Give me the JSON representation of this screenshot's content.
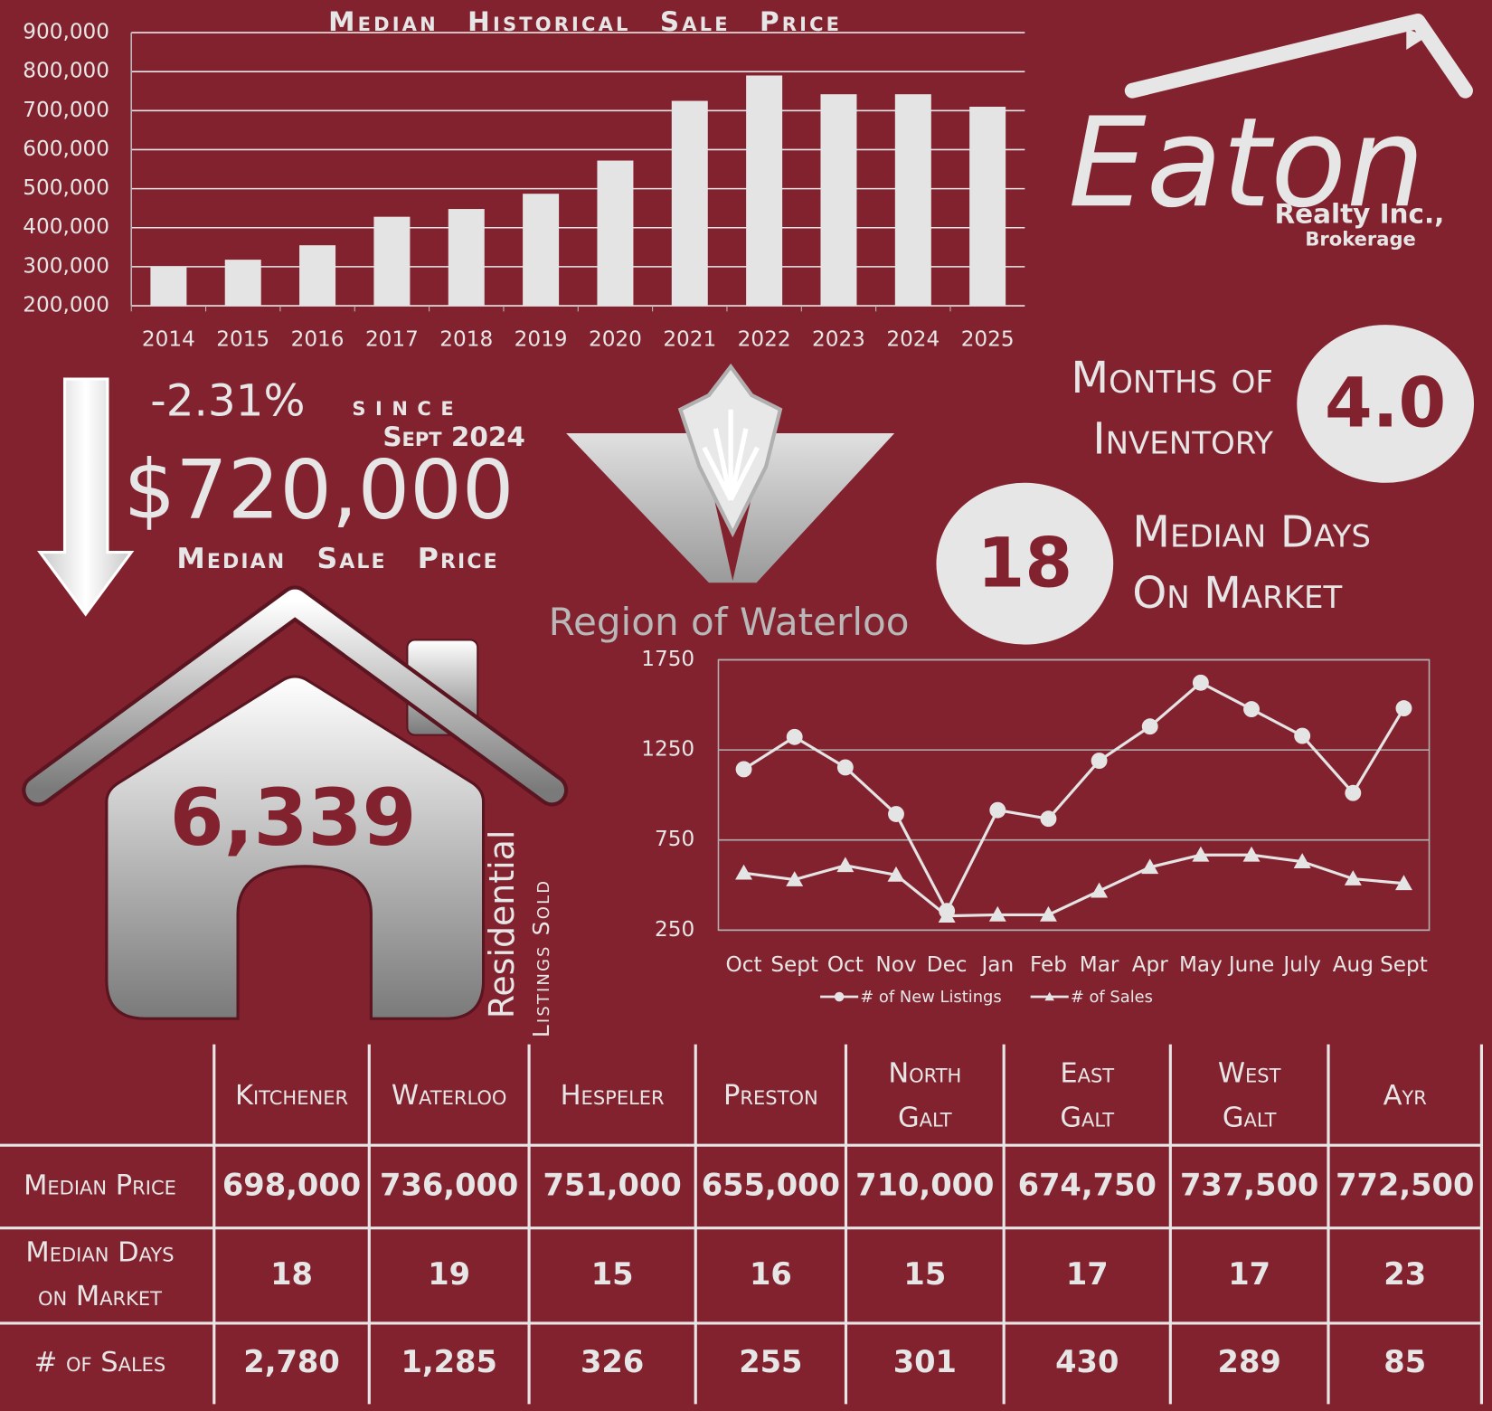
{
  "chart_data": [
    {
      "type": "bar",
      "title": "Median Historical Sale Price",
      "categories": [
        "2014",
        "2015",
        "2016",
        "2017",
        "2018",
        "2019",
        "2020",
        "2021",
        "2022",
        "2023",
        "2024",
        "2025"
      ],
      "values": [
        300000,
        318000,
        355000,
        428000,
        448000,
        487000,
        572000,
        725000,
        790000,
        742000,
        742000,
        710000
      ],
      "color": "#e4e4e4",
      "ylim": [
        200000,
        900000
      ],
      "yticks": [
        {
          "value": 200000,
          "label": "200,000"
        },
        {
          "value": 300000,
          "label": "300,000"
        },
        {
          "value": 400000,
          "label": "400,000"
        },
        {
          "value": 500000,
          "label": "500,000"
        },
        {
          "value": 600000,
          "label": "600,000"
        },
        {
          "value": 700000,
          "label": "700,000"
        },
        {
          "value": 800000,
          "label": "800,000"
        },
        {
          "value": 900000,
          "label": "900,000"
        }
      ],
      "grid": true
    },
    {
      "type": "line",
      "categories": [
        "Oct",
        "Sept",
        "Oct",
        "Nov",
        "Dec",
        "Jan",
        "Feb",
        "Mar",
        "Apr",
        "May",
        "June",
        "July",
        "Aug",
        "Sept"
      ],
      "series": [
        {
          "name": "# of New Listings",
          "color": "#e4e4e4",
          "marker": "circle",
          "values": [
            1143,
            1322,
            1153,
            894,
            356,
            916,
            868,
            1190,
            1380,
            1623,
            1476,
            1328,
            1011,
            1481
          ]
        },
        {
          "name": "# of Sales",
          "color": "#e4e4e4",
          "marker": "triangle",
          "values": [
            567,
            530,
            609,
            556,
            329,
            335,
            335,
            467,
            599,
            667,
            667,
            630,
            535,
            509
          ]
        }
      ],
      "ylim": [
        250,
        1750
      ],
      "yticks": [
        250,
        750,
        1250,
        1750
      ],
      "grid": true,
      "legend": "bottom"
    }
  ],
  "logo": {
    "name": "Eaton",
    "subtitle": "Realty Inc.,",
    "tagline": "Brokerage"
  },
  "region": "Region of Waterloo",
  "headline": {
    "change": "-2.31%",
    "since": "since",
    "period": "Sept 2024",
    "price": "$720,000",
    "label": "Median Sale Price"
  },
  "inventory": {
    "label": [
      "Months of",
      "Inventory"
    ],
    "value": "4.0"
  },
  "days": {
    "value": "18",
    "label": [
      "Median Days",
      "On Market"
    ]
  },
  "sold": {
    "value": "6,339",
    "label": "Residential",
    "sublabel": "Listings Sold"
  },
  "table": {
    "headers": [
      [
        "Kitchener"
      ],
      [
        "Waterloo"
      ],
      [
        "Hespeler"
      ],
      [
        "Preston"
      ],
      [
        "North",
        "Galt"
      ],
      [
        "East",
        "Galt"
      ],
      [
        "West",
        "Galt"
      ],
      [
        "Ayr"
      ]
    ],
    "rows": [
      {
        "label": [
          "Median Price"
        ],
        "cells": [
          "698,000",
          "736,000",
          "751,000",
          "655,000",
          "710,000",
          "674,750",
          "737,500",
          "772,500"
        ]
      },
      {
        "label": [
          "Median Days",
          "on Market"
        ],
        "cells": [
          "18",
          "19",
          "15",
          "16",
          "15",
          "17",
          "17",
          "23"
        ]
      },
      {
        "label": [
          "# of Sales"
        ],
        "cells": [
          "2,780",
          "1,285",
          "326",
          "255",
          "301",
          "430",
          "289",
          "85"
        ]
      }
    ]
  }
}
